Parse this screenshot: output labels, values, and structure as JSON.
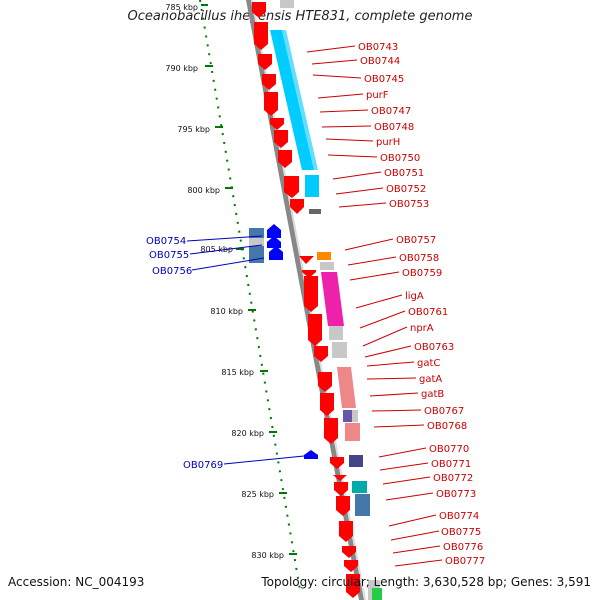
{
  "title": "Oceanobacillus iheyensis HTE831, complete genome",
  "footer": {
    "accession": "Accession: NC_004193",
    "summary": "Topology: circular; Length: 3,630,528 bp; Genes: 3,591"
  },
  "ruler": [
    "785 kbp",
    "790 kbp",
    "795 kbp",
    "800 kbp",
    "805 kbp",
    "810 kbp",
    "815 kbp",
    "820 kbp",
    "825 kbp",
    "830 kbp"
  ],
  "right_labels": [
    "OB0743",
    "OB0744",
    "OB0745",
    "purF",
    "OB0747",
    "OB0748",
    "purH",
    "OB0750",
    "OB0751",
    "OB0752",
    "OB0753",
    "OB0757",
    "OB0758",
    "OB0759",
    "ligA",
    "OB0761",
    "nprA",
    "OB0763",
    "gatC",
    "gatA",
    "gatB",
    "OB0767",
    "OB0768",
    "OB0770",
    "OB0771",
    "OB0772",
    "OB0773",
    "OB0774",
    "OB0775",
    "OB0776",
    "OB0777"
  ],
  "left_labels": [
    "OB0754",
    "OB0755",
    "OB0756",
    "OB0769"
  ],
  "colors": {
    "forward_gene": "#ff0000",
    "reverse_gene": "#0000ff",
    "backbone": "#888888",
    "cog_cyan": "#00ccff",
    "cog_magenta": "#ee22aa",
    "cog_pink": "#ee8888",
    "cog_steel": "#4477aa",
    "cog_grey": "#c8c8c8",
    "cog_orange": "#ff8800",
    "cog_teal": "#00aaaa",
    "cog_indigo": "#444488",
    "cog_green": "#22cc44",
    "tick": "#007700",
    "right_label": "#cc0000",
    "left_label": "#0000bb"
  }
}
